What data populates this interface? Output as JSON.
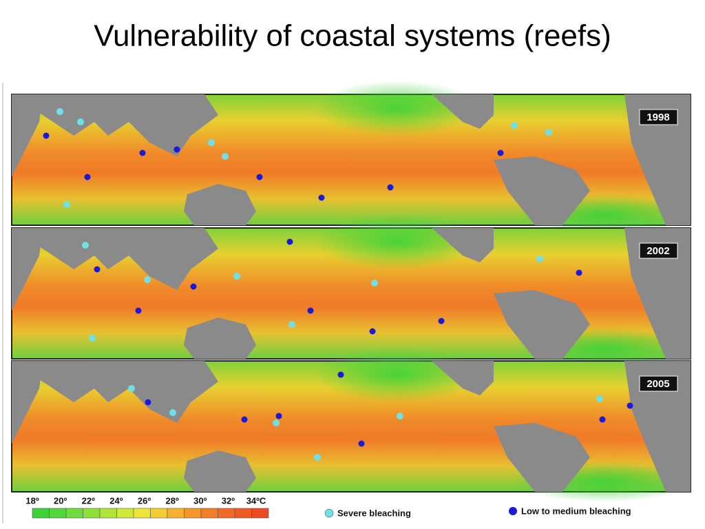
{
  "title": "Vulnerability of coastal systems (reefs)",
  "panels": [
    {
      "year": "1998"
    },
    {
      "year": "2002"
    },
    {
      "year": "2005"
    }
  ],
  "legend": {
    "scale_labels": [
      "18º",
      "20º",
      "22º",
      "24º",
      "26º",
      "28º",
      "30º",
      "32º",
      "34ºC"
    ],
    "severe": "Severe bleaching",
    "low": "Low to medium bleaching"
  }
}
